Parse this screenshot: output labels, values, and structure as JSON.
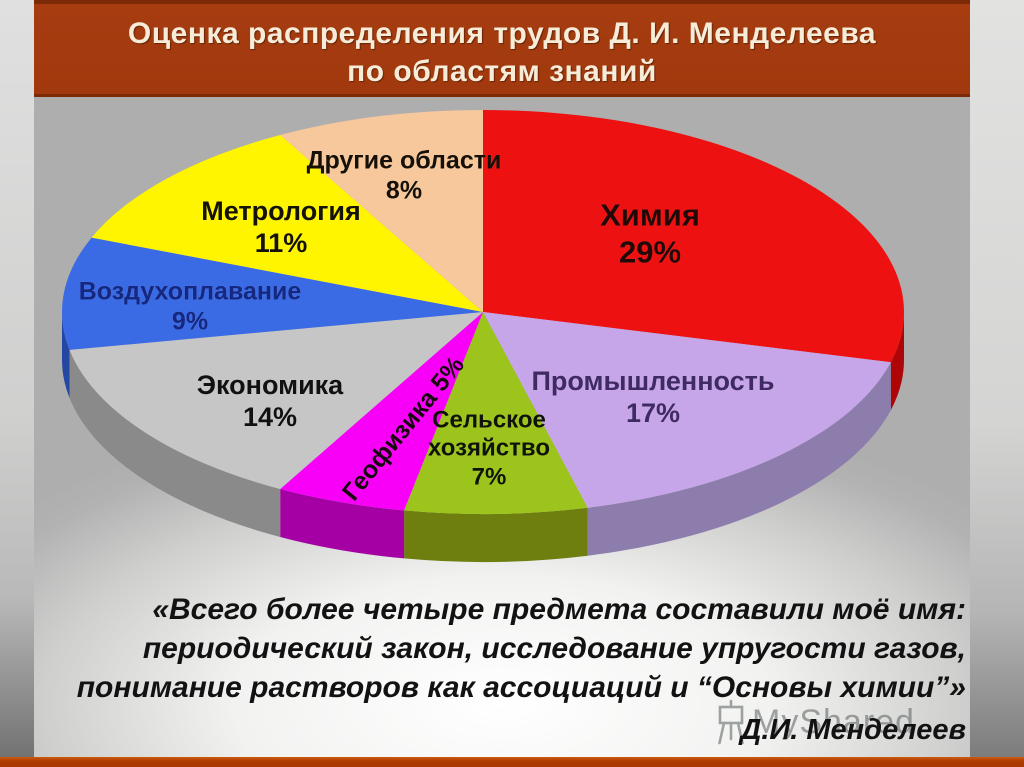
{
  "title": {
    "line1": "Оценка распределения трудов Д. И. Менделеева",
    "line2": "по областям знаний"
  },
  "chart_data": {
    "type": "pie",
    "style": "3d-pie",
    "title": "Оценка распределения трудов Д. И. Менделеева по областям знаний",
    "start_angle_deg": -90,
    "direction": "clockwise",
    "legend": "none",
    "units": "%",
    "slices": [
      {
        "id": "chemistry",
        "label": "Химия",
        "value": 29,
        "color": "#ee1111",
        "side_color": "#ae0606",
        "lines": [
          "Химия",
          "29%"
        ],
        "label_color": "#230808",
        "label_x": 650,
        "label_y": 234,
        "font_px": 31,
        "rotate_deg": 0
      },
      {
        "id": "industry",
        "label": "Промышленность",
        "value": 17,
        "color": "#c6a6e9",
        "side_color": "#8d7dac",
        "lines": [
          "Промышленность",
          "17%"
        ],
        "label_color": "#3f2a63",
        "label_x": 653,
        "label_y": 398,
        "font_px": 27,
        "rotate_deg": 0
      },
      {
        "id": "agriculture",
        "label": "Сельское хозяйство",
        "value": 7,
        "color": "#9cc41c",
        "side_color": "#6e7f10",
        "lines": [
          "Сельское",
          "хозяйство",
          "7%"
        ],
        "label_color": "#101408",
        "label_x": 489,
        "label_y": 449,
        "font_px": 24,
        "rotate_deg": 0
      },
      {
        "id": "geophysics",
        "label": "Геофизика",
        "value": 5,
        "color": "#f800f8",
        "side_color": "#a400a4",
        "lines": [
          "Геофизика 5%"
        ],
        "label_color": "#18040f",
        "label_x": 404,
        "label_y": 429,
        "font_px": 25,
        "rotate_deg": -51
      },
      {
        "id": "economics",
        "label": "Экономика",
        "value": 14,
        "color": "#c6c6c6",
        "side_color": "#8a8a8a",
        "lines": [
          "Экономика",
          "14%"
        ],
        "label_color": "#111111",
        "label_x": 270,
        "label_y": 402,
        "font_px": 27,
        "rotate_deg": 0
      },
      {
        "id": "aeronautics",
        "label": "Воздухоплавание",
        "value": 9,
        "color": "#3a6be4",
        "side_color": "#2447a4",
        "lines": [
          "Воздухоплавание",
          "9%"
        ],
        "label_color": "#16277f",
        "label_x": 190,
        "label_y": 307,
        "font_px": 25,
        "rotate_deg": 0
      },
      {
        "id": "metrology",
        "label": "Метрология",
        "value": 11,
        "color": "#fff500",
        "side_color": "#b0a800",
        "lines": [
          "Метрология",
          "11%"
        ],
        "label_color": "#151208",
        "label_x": 281,
        "label_y": 228,
        "font_px": 27,
        "rotate_deg": 0
      },
      {
        "id": "other-fields",
        "label": "Другие области",
        "value": 8,
        "color": "#f6c89c",
        "side_color": "#c09468",
        "lines": [
          "Другие области",
          "8%"
        ],
        "label_color": "#161008",
        "label_x": 404,
        "label_y": 176,
        "font_px": 25,
        "rotate_deg": 0
      }
    ]
  },
  "quote": {
    "line1": "«Всего более четыре предмета составили моё имя:",
    "line2": "периодический закон, исследование упругости газов,",
    "line3": "понимание растворов как ассоциаций и “Основы химии”»",
    "attribution": "Д.И. Менделеев"
  },
  "watermark": {
    "text": "MyShared",
    "icon": "easel-icon"
  },
  "colors": {
    "title_bar": "#a2390e",
    "title_text": "#f7ecd8",
    "bottom_bar": "#a83800",
    "quote_text": "#121212"
  }
}
